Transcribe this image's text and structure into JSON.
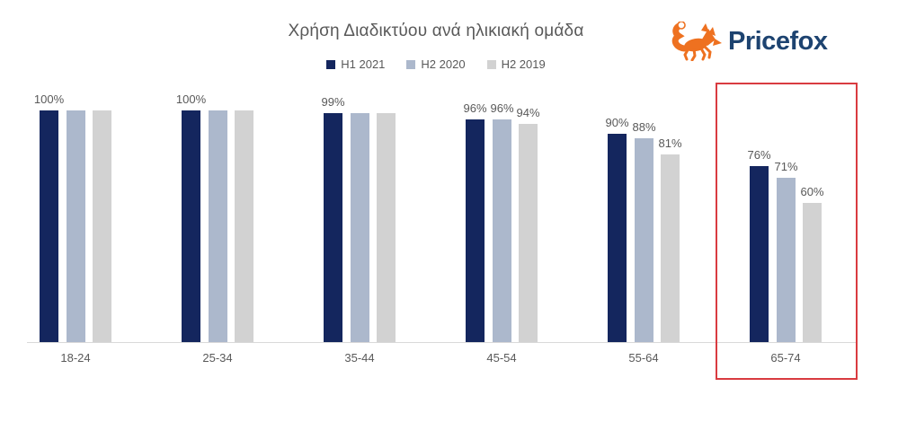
{
  "title": "Χρήση Διαδικτύου ανά ηλικιακή ομάδα",
  "logo": {
    "brand": "Pricefox",
    "icon": "fox-icon",
    "brand_color": "#1d4370",
    "fox_color": "#ee7120"
  },
  "legend": {
    "items": [
      {
        "label": "H1 2021",
        "color": "#14265e"
      },
      {
        "label": "H2 2020",
        "color": "#acb8cc"
      },
      {
        "label": "H2 2019",
        "color": "#d2d2d2"
      }
    ]
  },
  "chart_data": {
    "type": "bar",
    "title": "Χρήση Διαδικτύου ανά ηλικιακή ομάδα",
    "categories": [
      "18-24",
      "25-34",
      "35-44",
      "45-54",
      "55-64",
      "65-74"
    ],
    "series": [
      {
        "name": "H1 2021",
        "color": "#14265e",
        "values": [
          100,
          100,
          99,
          96,
          90,
          76
        ]
      },
      {
        "name": "H2 2020",
        "color": "#acb8cc",
        "values": [
          100,
          100,
          99,
          96,
          88,
          71
        ]
      },
      {
        "name": "H2 2019",
        "color": "#d2d2d2",
        "values": [
          100,
          100,
          99,
          94,
          81,
          60
        ]
      }
    ],
    "data_labels": [
      [
        "100%",
        null,
        null
      ],
      [
        "100%",
        null,
        null
      ],
      [
        "99%",
        null,
        null
      ],
      [
        "96%",
        "96%",
        "94%"
      ],
      [
        "90%",
        "88%",
        "81%"
      ],
      [
        "76%",
        "71%",
        "60%"
      ]
    ],
    "xlabel": "",
    "ylabel": "",
    "ylim": [
      0,
      100
    ],
    "grid": false,
    "legend_position": "top",
    "axis_line_color": "#d9d9d9",
    "label_color": "#595959",
    "highlight": {
      "category": "65-74",
      "color": "#d93b40",
      "shape": "red-rectangle"
    }
  }
}
